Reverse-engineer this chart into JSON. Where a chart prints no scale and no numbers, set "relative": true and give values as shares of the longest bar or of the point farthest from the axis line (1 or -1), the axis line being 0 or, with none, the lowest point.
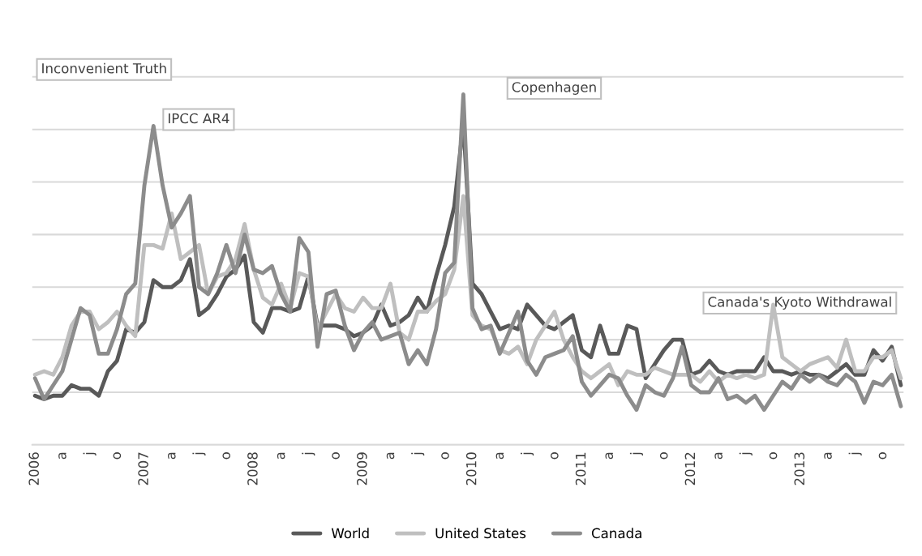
{
  "chart_data": {
    "type": "line",
    "relative": true,
    "grid": "y",
    "legend": "bottom",
    "marker": "none",
    "line_style": "solid",
    "categories": [
      "2006",
      null,
      null,
      "a",
      null,
      null,
      "j",
      null,
      null,
      "o",
      null,
      null,
      "2007",
      null,
      null,
      "a",
      null,
      null,
      "j",
      null,
      null,
      "o",
      null,
      null,
      "2008",
      null,
      null,
      "a",
      null,
      null,
      "j",
      null,
      null,
      "o",
      null,
      null,
      "2009",
      null,
      null,
      "a",
      null,
      null,
      "j",
      null,
      null,
      "o",
      null,
      null,
      "2010",
      null,
      null,
      "a",
      null,
      null,
      "j",
      null,
      null,
      "o",
      null,
      null,
      "2011",
      null,
      null,
      "a",
      null,
      null,
      "j",
      null,
      null,
      "o",
      null,
      null,
      "2012",
      null,
      null,
      "a",
      null,
      null,
      "j",
      null,
      null,
      "o",
      null,
      null,
      "2013",
      null,
      null,
      "a",
      null,
      null,
      "j",
      null,
      null,
      "o",
      null,
      null
    ],
    "series": [
      {
        "name": "World",
        "color": "#595959",
        "values": [
          0.14,
          0.13,
          0.14,
          0.14,
          0.17,
          0.16,
          0.16,
          0.14,
          0.21,
          0.24,
          0.33,
          0.32,
          0.35,
          0.47,
          0.45,
          0.45,
          0.47,
          0.53,
          0.37,
          0.39,
          0.43,
          0.48,
          0.5,
          0.54,
          0.35,
          0.32,
          0.39,
          0.39,
          0.38,
          0.39,
          0.48,
          0.34,
          0.34,
          0.34,
          0.33,
          0.31,
          0.32,
          0.34,
          0.4,
          0.34,
          0.35,
          0.37,
          0.42,
          0.38,
          0.48,
          0.57,
          0.68,
          0.92,
          0.46,
          0.43,
          0.38,
          0.33,
          0.34,
          0.33,
          0.4,
          0.37,
          0.34,
          0.33,
          0.35,
          0.37,
          0.27,
          0.25,
          0.34,
          0.26,
          0.26,
          0.34,
          0.33,
          0.19,
          0.23,
          0.27,
          0.3,
          0.3,
          0.2,
          0.21,
          0.24,
          0.21,
          0.2,
          0.21,
          0.21,
          0.21,
          0.25,
          0.21,
          0.21,
          0.2,
          0.21,
          0.2,
          0.2,
          0.19,
          0.21,
          0.23,
          0.2,
          0.2,
          0.27,
          0.24,
          0.28,
          0.17
        ]
      },
      {
        "name": "United States",
        "color": "#bfbfbf",
        "values": [
          0.2,
          0.21,
          0.2,
          0.25,
          0.34,
          0.38,
          0.38,
          0.33,
          0.35,
          0.38,
          0.34,
          0.31,
          0.57,
          0.57,
          0.56,
          0.66,
          0.53,
          0.55,
          0.57,
          0.43,
          0.48,
          0.49,
          0.53,
          0.63,
          0.5,
          0.42,
          0.4,
          0.46,
          0.39,
          0.49,
          0.48,
          0.33,
          0.38,
          0.43,
          0.39,
          0.38,
          0.42,
          0.39,
          0.39,
          0.46,
          0.32,
          0.3,
          0.38,
          0.38,
          0.41,
          0.43,
          0.5,
          0.71,
          0.37,
          0.34,
          0.33,
          0.27,
          0.26,
          0.28,
          0.23,
          0.3,
          0.34,
          0.38,
          0.3,
          0.25,
          0.21,
          0.19,
          0.21,
          0.23,
          0.17,
          0.21,
          0.2,
          0.2,
          0.22,
          0.21,
          0.2,
          0.2,
          0.2,
          0.18,
          0.21,
          0.18,
          0.2,
          0.19,
          0.2,
          0.19,
          0.2,
          0.4,
          0.25,
          0.23,
          0.21,
          0.23,
          0.24,
          0.25,
          0.22,
          0.3,
          0.21,
          0.21,
          0.25,
          0.25,
          0.27,
          0.19
        ]
      },
      {
        "name": "Canada",
        "color": "#8c8c8c",
        "values": [
          0.19,
          0.13,
          0.17,
          0.21,
          0.3,
          0.39,
          0.37,
          0.26,
          0.26,
          0.33,
          0.43,
          0.46,
          0.74,
          0.91,
          0.74,
          0.62,
          0.66,
          0.71,
          0.45,
          0.43,
          0.49,
          0.57,
          0.49,
          0.6,
          0.5,
          0.49,
          0.51,
          0.43,
          0.38,
          0.59,
          0.55,
          0.28,
          0.43,
          0.44,
          0.34,
          0.27,
          0.32,
          0.35,
          0.3,
          0.31,
          0.32,
          0.23,
          0.27,
          0.23,
          0.33,
          0.49,
          0.52,
          1,
          0.39,
          0.33,
          0.34,
          0.26,
          0.32,
          0.38,
          0.24,
          0.2,
          0.25,
          0.26,
          0.27,
          0.31,
          0.18,
          0.14,
          0.17,
          0.2,
          0.19,
          0.14,
          0.1,
          0.17,
          0.15,
          0.14,
          0.19,
          0.28,
          0.17,
          0.15,
          0.15,
          0.19,
          0.13,
          0.14,
          0.12,
          0.14,
          0.1,
          0.14,
          0.18,
          0.16,
          0.2,
          0.18,
          0.2,
          0.18,
          0.17,
          0.2,
          0.18,
          0.12,
          0.18,
          0.17,
          0.2,
          0.11
        ]
      }
    ],
    "annotations": [
      "IPCC AR4",
      "Copenhagen",
      "Inconvenient Truth",
      "Canada's Kyoto Withdrawal"
    ]
  }
}
